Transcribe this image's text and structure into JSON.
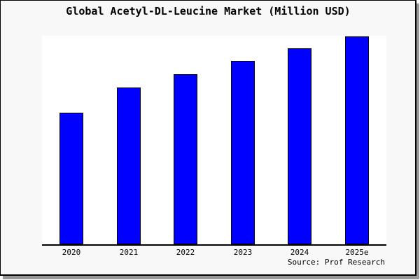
{
  "title": "Global Acetyl-DL-Leucine Market (Million USD)",
  "source": "Source: Prof Research",
  "colors": {
    "bar_fill": "#0000ff",
    "bar_border": "#000000",
    "plot_background": "#ffffff",
    "canvas_background": "#f8f8f8",
    "frame_border": "#000000",
    "frame_shadow": "#999999",
    "axis_line": "#000000",
    "text": "#000000"
  },
  "chart_data": {
    "type": "bar",
    "title": "Global Acetyl-DL-Leucine Market (Million USD)",
    "categories": [
      "2020",
      "2021",
      "2022",
      "2023",
      "2024",
      "2025e"
    ],
    "values": [
      188,
      224,
      243,
      262,
      280,
      297
    ],
    "values_indexed_2025e_100": [
      63,
      75,
      82,
      88,
      94,
      100
    ],
    "values_unit": "relative bar height in pixels (chart displays no numeric value axis)",
    "xlabel": "",
    "ylabel": "",
    "grid": false,
    "legend": false,
    "y_axis_shown": false,
    "x_axis_shown": true,
    "annotations": [
      "Source: Prof Research"
    ]
  }
}
